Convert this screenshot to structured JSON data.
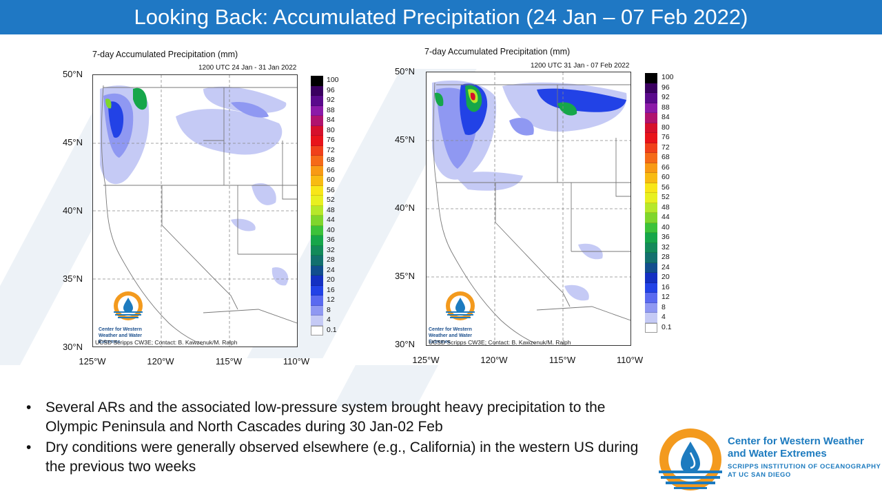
{
  "slide": {
    "title": "Looking Back: Accumulated Precipitation (24 Jan – 07 Feb 2022)"
  },
  "maps": [
    {
      "title": "7-day Accumulated Precipitation (mm)",
      "subtitle": "1200 UTC 24 Jan - 31 Jan 2022",
      "credit": "UCSD Scripps CW3E; Contact: B. Kawzenuk/M. Ralph",
      "logo_text": "Center for Western Weather and Water Extremes"
    },
    {
      "title": "7-day Accumulated Precipitation (mm)",
      "subtitle": "1200 UTC 31 Jan - 07 Feb 2022",
      "credit": "UCSD Scripps CW3E; Contact: B. Kawzenuk/M. Ralph",
      "logo_text": "Center for Western Weather and Water Extremes"
    }
  ],
  "axes": {
    "lat_labels": [
      "50°N",
      "45°N",
      "40°N",
      "35°N",
      "30°N"
    ],
    "lon_labels": [
      "125°W",
      "120°W",
      "115°W",
      "110°W"
    ]
  },
  "colorbar": {
    "labels": [
      "100",
      "96",
      "92",
      "88",
      "84",
      "80",
      "76",
      "72",
      "68",
      "66",
      "60",
      "56",
      "52",
      "48",
      "44",
      "40",
      "36",
      "32",
      "28",
      "24",
      "20",
      "16",
      "12",
      "8",
      "4",
      "0.1"
    ],
    "colors": [
      "#000000",
      "#3a0060",
      "#5a0a8c",
      "#8b1aa8",
      "#b0136e",
      "#d6102c",
      "#e8131a",
      "#f0401a",
      "#f56a18",
      "#f89a14",
      "#f8bb12",
      "#f8e618",
      "#e8f020",
      "#b6e82a",
      "#7fd62c",
      "#3cc23a",
      "#16a64a",
      "#138a5a",
      "#13706e",
      "#124e8e",
      "#1430c2",
      "#2242e6",
      "#5a6af0",
      "#8f98f2",
      "#c5caf5",
      "#ffffff"
    ]
  },
  "bullets": [
    "Several ARs and the associated low-pressure system brought heavy precipitation to the Olympic Peninsula and North Cascades during 30 Jan-02 Feb",
    "Dry conditions were generally observed elsewhere (e.g., California) in the western US during the previous two weeks"
  ],
  "org": {
    "name": "Center for Western Weather and Water Extremes",
    "institution_line1": "SCRIPPS INSTITUTION OF OCEANOGRAPHY",
    "institution_line2": "AT UC SAN DIEGO"
  }
}
